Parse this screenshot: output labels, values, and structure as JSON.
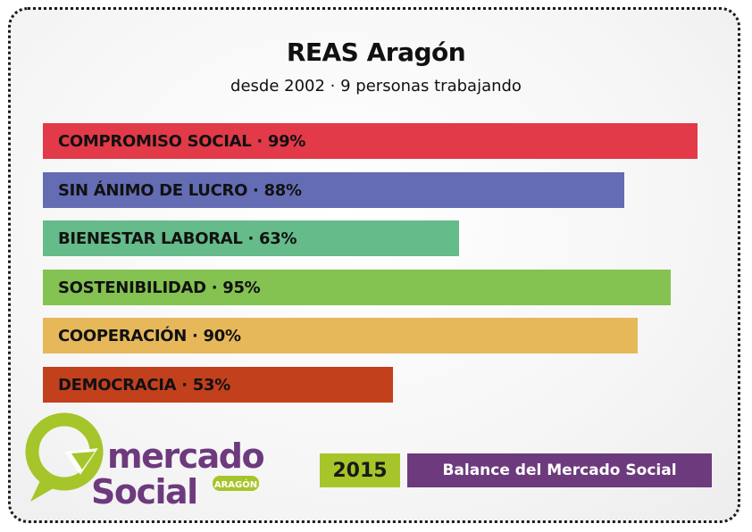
{
  "header": {
    "title": "REAS Aragón",
    "subtitle": "desde 2002 · 9 personas trabajando"
  },
  "chart_data": {
    "type": "bar",
    "orientation": "horizontal",
    "title": "REAS Aragón",
    "subtitle": "desde 2002 · 9 personas trabajando",
    "xlim": [
      0,
      100
    ],
    "unit": "%",
    "grid": false,
    "legend": "none",
    "categories": [
      "COMPROMISO SOCIAL",
      "SIN ÁNIMO DE LUCRO",
      "BIENESTAR LABORAL",
      "SOSTENIBILIDAD",
      "COOPERACIÓN",
      "DEMOCRACIA"
    ],
    "values": [
      99,
      88,
      63,
      95,
      90,
      53
    ],
    "labels": [
      "COMPROMISO SOCIAL · 99%",
      "SIN ÁNIMO DE LUCRO · 88%",
      "BIENESTAR LABORAL · 63%",
      "SOSTENIBILIDAD · 95%",
      "COOPERACIÓN · 90%",
      "DEMOCRACIA · 53%"
    ],
    "colors": [
      "#e23a48",
      "#646cb4",
      "#65bb8a",
      "#84c252",
      "#e6b85a",
      "#c3401d"
    ]
  },
  "logo": {
    "word1": "mercado",
    "word2": "Social",
    "badge": "ARAGÓN",
    "green": "#a6c52a",
    "purple": "#6d3a7e"
  },
  "footer": {
    "year": "2015",
    "caption": "Balance del Mercado Social",
    "year_color": "#a6c52a",
    "caption_color": "#6d3a7e"
  }
}
